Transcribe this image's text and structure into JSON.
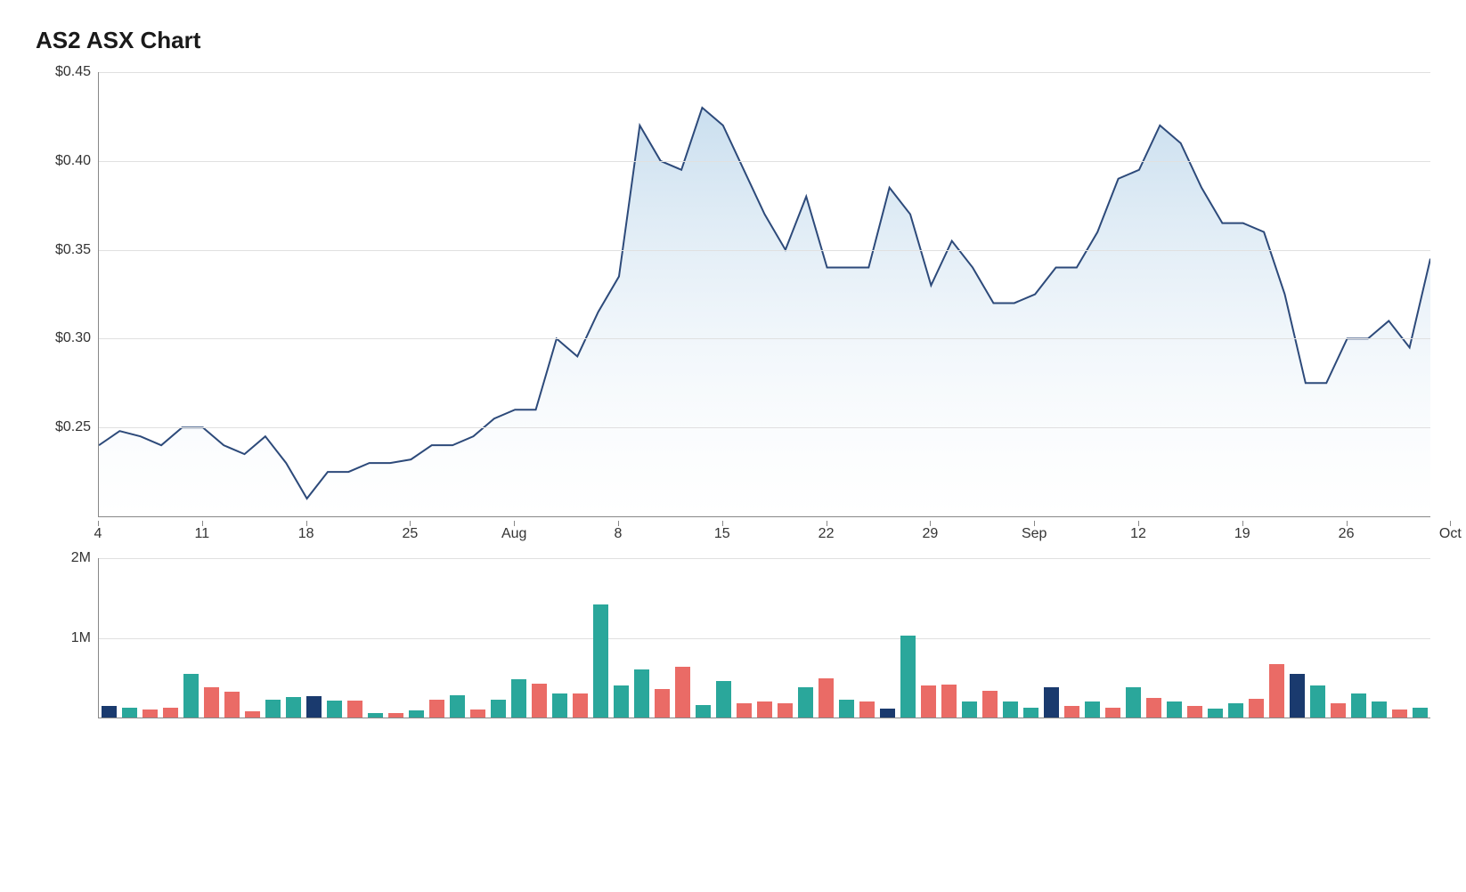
{
  "title": "AS2 ASX Chart",
  "price_chart": {
    "type": "area",
    "line_color": "#2d4a7a",
    "line_width": 2,
    "fill_top": "#c4dbed",
    "fill_bottom": "#ffffff",
    "grid_color": "#e0e0e0",
    "axis_color": "#888888",
    "background_color": "#ffffff",
    "label_fontsize": 16,
    "label_color": "#333333",
    "ylim": [
      0.2,
      0.45
    ],
    "yticks": [
      0.25,
      0.3,
      0.35,
      0.4,
      0.45
    ],
    "ytick_labels": [
      "$0.25",
      "$0.30",
      "$0.35",
      "$0.40",
      "$0.45"
    ],
    "xtick_labels": [
      "4",
      "11",
      "18",
      "25",
      "Aug",
      "8",
      "15",
      "22",
      "29",
      "Sep",
      "12",
      "19",
      "26",
      "Oct"
    ],
    "xtick_indices": [
      0,
      5,
      10,
      15,
      20,
      25,
      30,
      35,
      40,
      45,
      50,
      55,
      60,
      65
    ],
    "values": [
      0.24,
      0.248,
      0.245,
      0.24,
      0.25,
      0.25,
      0.24,
      0.235,
      0.245,
      0.23,
      0.21,
      0.225,
      0.225,
      0.23,
      0.23,
      0.232,
      0.24,
      0.24,
      0.245,
      0.255,
      0.26,
      0.26,
      0.3,
      0.29,
      0.315,
      0.335,
      0.42,
      0.4,
      0.395,
      0.43,
      0.42,
      0.395,
      0.37,
      0.35,
      0.38,
      0.34,
      0.34,
      0.34,
      0.385,
      0.37,
      0.33,
      0.355,
      0.34,
      0.32,
      0.32,
      0.325,
      0.34,
      0.34,
      0.36,
      0.39,
      0.395,
      0.42,
      0.41,
      0.385,
      0.365,
      0.365,
      0.36,
      0.325,
      0.275,
      0.275,
      0.3,
      0.3,
      0.31,
      0.295,
      0.345
    ]
  },
  "volume_chart": {
    "type": "bar",
    "ylim": [
      0,
      2000000
    ],
    "yticks": [
      1000000,
      2000000
    ],
    "ytick_labels": [
      "1M",
      "2M"
    ],
    "grid_color": "#e0e0e0",
    "axis_color": "#888888",
    "background_color": "#ffffff",
    "bar_width_ratio": 0.7,
    "colors": {
      "up": "#2aa79b",
      "down": "#ea6b66",
      "neutral": "#1a3a6e"
    },
    "bars": [
      {
        "v": 150000,
        "c": "neutral"
      },
      {
        "v": 120000,
        "c": "up"
      },
      {
        "v": 100000,
        "c": "down"
      },
      {
        "v": 120000,
        "c": "down"
      },
      {
        "v": 550000,
        "c": "up"
      },
      {
        "v": 380000,
        "c": "down"
      },
      {
        "v": 320000,
        "c": "down"
      },
      {
        "v": 80000,
        "c": "down"
      },
      {
        "v": 220000,
        "c": "up"
      },
      {
        "v": 260000,
        "c": "up"
      },
      {
        "v": 270000,
        "c": "neutral"
      },
      {
        "v": 210000,
        "c": "up"
      },
      {
        "v": 210000,
        "c": "down"
      },
      {
        "v": 60000,
        "c": "up"
      },
      {
        "v": 60000,
        "c": "down"
      },
      {
        "v": 90000,
        "c": "up"
      },
      {
        "v": 220000,
        "c": "down"
      },
      {
        "v": 280000,
        "c": "up"
      },
      {
        "v": 100000,
        "c": "down"
      },
      {
        "v": 220000,
        "c": "up"
      },
      {
        "v": 480000,
        "c": "up"
      },
      {
        "v": 420000,
        "c": "down"
      },
      {
        "v": 300000,
        "c": "up"
      },
      {
        "v": 300000,
        "c": "down"
      },
      {
        "v": 1420000,
        "c": "up"
      },
      {
        "v": 400000,
        "c": "up"
      },
      {
        "v": 600000,
        "c": "up"
      },
      {
        "v": 360000,
        "c": "down"
      },
      {
        "v": 640000,
        "c": "down"
      },
      {
        "v": 160000,
        "c": "up"
      },
      {
        "v": 460000,
        "c": "up"
      },
      {
        "v": 180000,
        "c": "down"
      },
      {
        "v": 200000,
        "c": "down"
      },
      {
        "v": 180000,
        "c": "down"
      },
      {
        "v": 380000,
        "c": "up"
      },
      {
        "v": 490000,
        "c": "down"
      },
      {
        "v": 220000,
        "c": "up"
      },
      {
        "v": 200000,
        "c": "down"
      },
      {
        "v": 110000,
        "c": "neutral"
      },
      {
        "v": 1030000,
        "c": "up"
      },
      {
        "v": 400000,
        "c": "down"
      },
      {
        "v": 410000,
        "c": "down"
      },
      {
        "v": 200000,
        "c": "up"
      },
      {
        "v": 340000,
        "c": "down"
      },
      {
        "v": 200000,
        "c": "up"
      },
      {
        "v": 120000,
        "c": "up"
      },
      {
        "v": 380000,
        "c": "neutral"
      },
      {
        "v": 150000,
        "c": "down"
      },
      {
        "v": 200000,
        "c": "up"
      },
      {
        "v": 120000,
        "c": "down"
      },
      {
        "v": 380000,
        "c": "up"
      },
      {
        "v": 250000,
        "c": "down"
      },
      {
        "v": 200000,
        "c": "up"
      },
      {
        "v": 140000,
        "c": "down"
      },
      {
        "v": 110000,
        "c": "up"
      },
      {
        "v": 180000,
        "c": "up"
      },
      {
        "v": 240000,
        "c": "down"
      },
      {
        "v": 670000,
        "c": "down"
      },
      {
        "v": 550000,
        "c": "neutral"
      },
      {
        "v": 400000,
        "c": "up"
      },
      {
        "v": 180000,
        "c": "down"
      },
      {
        "v": 300000,
        "c": "up"
      },
      {
        "v": 200000,
        "c": "up"
      },
      {
        "v": 100000,
        "c": "down"
      },
      {
        "v": 120000,
        "c": "up"
      }
    ]
  }
}
